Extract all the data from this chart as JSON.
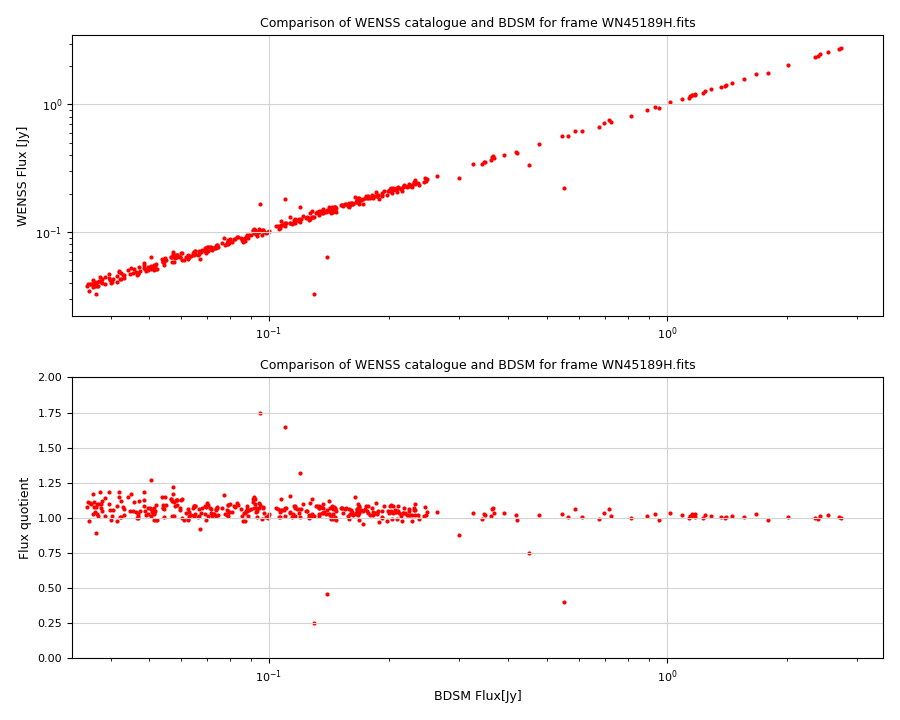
{
  "title": "Comparison of WENSS catalogue and BDSM for frame WN45189H.fits",
  "xlabel": "BDSM Flux[Jy]",
  "ylabel1": "WENSS Flux [Jy]",
  "ylabel2": "Flux quotient",
  "plot1_xlim": [
    0.032,
    3.5
  ],
  "plot1_ylim": [
    0.022,
    3.5
  ],
  "plot2_xlim": [
    0.032,
    3.5
  ],
  "plot2_ylim": [
    0.0,
    2.0
  ],
  "plot2_yticks": [
    0.0,
    0.25,
    0.5,
    0.75,
    1.0,
    1.25,
    1.5,
    1.75,
    2.0
  ],
  "color": "#ff0000",
  "marker_size": 3,
  "seed": 12345
}
